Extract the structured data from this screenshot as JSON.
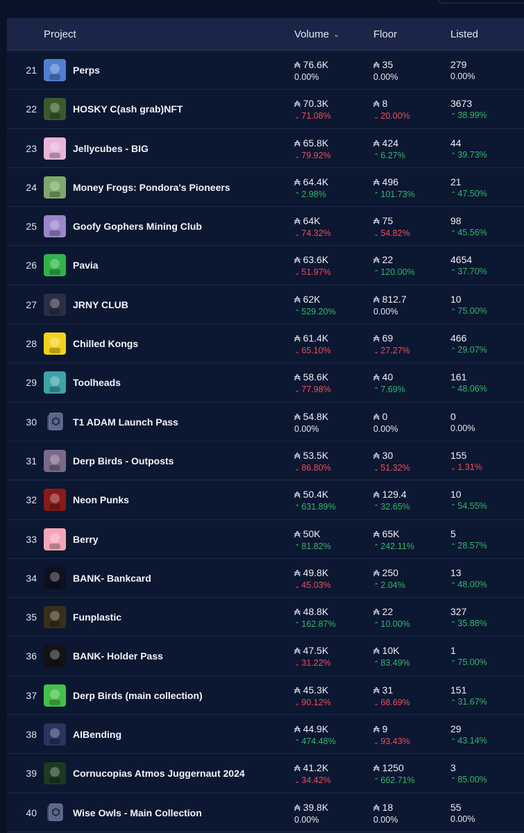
{
  "header": {
    "project": "Project",
    "volume": "Volume",
    "floor": "Floor",
    "listed": "Listed"
  },
  "currency_symbol": "₳",
  "rows": [
    {
      "rank": "21",
      "name": "Perps",
      "icon": "perps-thumbnail",
      "thumb_color": "#4f7fd0",
      "volume": "76.6K",
      "volume_change": "0.00%",
      "volume_dir": "neutral",
      "floor": "35",
      "floor_change": "0.00%",
      "floor_dir": "neutral",
      "listed": "279",
      "listed_change": "0.00%",
      "listed_dir": "neutral"
    },
    {
      "rank": "22",
      "name": "HOSKY C(ash grab)NFT",
      "icon": "hosky-thumbnail",
      "thumb_color": "#3a5a2c",
      "volume": "70.3K",
      "volume_change": "71.08%",
      "volume_dir": "down",
      "floor": "8",
      "floor_change": "20.00%",
      "floor_dir": "down",
      "listed": "3673",
      "listed_change": "38.99%",
      "listed_dir": "up"
    },
    {
      "rank": "23",
      "name": "Jellycubes - BIG",
      "icon": "jellycubes-thumbnail",
      "thumb_color": "#e8b6d8",
      "volume": "65.8K",
      "volume_change": "79.92%",
      "volume_dir": "down",
      "floor": "424",
      "floor_change": "6.27%",
      "floor_dir": "up",
      "listed": "44",
      "listed_change": "39.73%",
      "listed_dir": "up"
    },
    {
      "rank": "24",
      "name": "Money Frogs: Pondora's Pioneers",
      "icon": "money-frogs-thumbnail",
      "thumb_color": "#7fa96a",
      "volume": "64.4K",
      "volume_change": "2.98%",
      "volume_dir": "up",
      "floor": "496",
      "floor_change": "101.73%",
      "floor_dir": "up",
      "listed": "21",
      "listed_change": "47.50%",
      "listed_dir": "up"
    },
    {
      "rank": "25",
      "name": "Goofy Gophers Mining Club",
      "icon": "goofy-gophers-thumbnail",
      "thumb_color": "#9a86c8",
      "volume": "64K",
      "volume_change": "74.32%",
      "volume_dir": "down",
      "floor": "75",
      "floor_change": "54.82%",
      "floor_dir": "down",
      "listed": "98",
      "listed_change": "45.56%",
      "listed_dir": "up"
    },
    {
      "rank": "26",
      "name": "Pavia",
      "icon": "pavia-thumbnail",
      "thumb_color": "#2fb34a",
      "volume": "63.6K",
      "volume_change": "51.97%",
      "volume_dir": "down",
      "floor": "22",
      "floor_change": "120.00%",
      "floor_dir": "up",
      "listed": "4654",
      "listed_change": "37.70%",
      "listed_dir": "up"
    },
    {
      "rank": "27",
      "name": "JRNY CLUB",
      "icon": "jrny-club-thumbnail",
      "thumb_color": "#2c2e45",
      "volume": "62K",
      "volume_change": "529.20%",
      "volume_dir": "up",
      "floor": "812.7",
      "floor_change": "0.00%",
      "floor_dir": "neutral",
      "listed": "10",
      "listed_change": "75.00%",
      "listed_dir": "up"
    },
    {
      "rank": "28",
      "name": "Chilled Kongs",
      "icon": "chilled-kongs-thumbnail",
      "thumb_color": "#f2d21e",
      "volume": "61.4K",
      "volume_change": "65.10%",
      "volume_dir": "down",
      "floor": "69",
      "floor_change": "27.27%",
      "floor_dir": "down",
      "listed": "466",
      "listed_change": "29.07%",
      "listed_dir": "up"
    },
    {
      "rank": "29",
      "name": "Toolheads",
      "icon": "toolheads-thumbnail",
      "thumb_color": "#3ea3a8",
      "volume": "58.6K",
      "volume_change": "77.98%",
      "volume_dir": "down",
      "floor": "40",
      "floor_change": "7.69%",
      "floor_dir": "up",
      "listed": "161",
      "listed_change": "48.06%",
      "listed_dir": "up"
    },
    {
      "rank": "30",
      "name": "T1 ADAM Launch Pass",
      "icon": "placeholder-cube-thumbnail",
      "thumb_color": "#0c1731",
      "volume": "54.8K",
      "volume_change": "0.00%",
      "volume_dir": "neutral",
      "floor": "0",
      "floor_change": "0.00%",
      "floor_dir": "neutral",
      "listed": "0",
      "listed_change": "0.00%",
      "listed_dir": "neutral"
    },
    {
      "rank": "31",
      "name": "Derp Birds - Outposts",
      "icon": "derp-birds-outposts-thumbnail",
      "thumb_color": "#7a6a8a",
      "volume": "53.5K",
      "volume_change": "86.80%",
      "volume_dir": "down",
      "floor": "30",
      "floor_change": "51.32%",
      "floor_dir": "down",
      "listed": "155",
      "listed_change": "1.31%",
      "listed_dir": "down"
    },
    {
      "rank": "32",
      "name": "Neon Punks",
      "icon": "neon-punks-thumbnail",
      "thumb_color": "#8a1a1a",
      "volume": "50.4K",
      "volume_change": "631.89%",
      "volume_dir": "up",
      "floor": "129.4",
      "floor_change": "32.65%",
      "floor_dir": "up",
      "listed": "10",
      "listed_change": "54.55%",
      "listed_dir": "up"
    },
    {
      "rank": "33",
      "name": "Berry",
      "icon": "berry-thumbnail",
      "thumb_color": "#f4a6b8",
      "volume": "50K",
      "volume_change": "81.82%",
      "volume_dir": "up",
      "floor": "65K",
      "floor_change": "242.11%",
      "floor_dir": "up",
      "listed": "5",
      "listed_change": "28.57%",
      "listed_dir": "up"
    },
    {
      "rank": "34",
      "name": "BANK- Bankcard",
      "icon": "bank-bankcard-thumbnail",
      "thumb_color": "#0e1020",
      "volume": "49.8K",
      "volume_change": "45.03%",
      "volume_dir": "down",
      "floor": "250",
      "floor_change": "2.04%",
      "floor_dir": "up",
      "listed": "13",
      "listed_change": "48.00%",
      "listed_dir": "up"
    },
    {
      "rank": "35",
      "name": "Funplastic",
      "icon": "funplastic-thumbnail",
      "thumb_color": "#3a2f1a",
      "volume": "48.8K",
      "volume_change": "162.87%",
      "volume_dir": "up",
      "floor": "22",
      "floor_change": "10.00%",
      "floor_dir": "up",
      "listed": "327",
      "listed_change": "35.88%",
      "listed_dir": "up"
    },
    {
      "rank": "36",
      "name": "BANK- Holder Pass",
      "icon": "bank-holder-pass-thumbnail",
      "thumb_color": "#141214",
      "volume": "47.5K",
      "volume_change": "31.22%",
      "volume_dir": "down",
      "floor": "10K",
      "floor_change": "83.49%",
      "floor_dir": "up",
      "listed": "1",
      "listed_change": "75.00%",
      "listed_dir": "up"
    },
    {
      "rank": "37",
      "name": "Derp Birds (main collection)",
      "icon": "derp-birds-thumbnail",
      "thumb_color": "#45c04a",
      "volume": "45.3K",
      "volume_change": "90.12%",
      "volume_dir": "down",
      "floor": "31",
      "floor_change": "68.69%",
      "floor_dir": "down",
      "listed": "151",
      "listed_change": "31.67%",
      "listed_dir": "up"
    },
    {
      "rank": "38",
      "name": "AIBending",
      "icon": "aibending-thumbnail",
      "thumb_color": "#2a3560",
      "volume": "44.9K",
      "volume_change": "474.48%",
      "volume_dir": "up",
      "floor": "9",
      "floor_change": "93.43%",
      "floor_dir": "down",
      "listed": "29",
      "listed_change": "43.14%",
      "listed_dir": "up"
    },
    {
      "rank": "39",
      "name": "Cornucopias Atmos Juggernaut 2024",
      "icon": "cornucopias-thumbnail",
      "thumb_color": "#1c3a22",
      "volume": "41.2K",
      "volume_change": "34.42%",
      "volume_dir": "down",
      "floor": "1250",
      "floor_change": "662.71%",
      "floor_dir": "up",
      "listed": "3",
      "listed_change": "85.00%",
      "listed_dir": "up"
    },
    {
      "rank": "40",
      "name": "Wise Owls - Main Collection",
      "icon": "placeholder-cube-thumbnail",
      "thumb_color": "#0c1731",
      "volume": "39.8K",
      "volume_change": "0.00%",
      "volume_dir": "neutral",
      "floor": "18",
      "floor_change": "0.00%",
      "floor_dir": "neutral",
      "listed": "55",
      "listed_change": "0.00%",
      "listed_dir": "neutral"
    }
  ]
}
